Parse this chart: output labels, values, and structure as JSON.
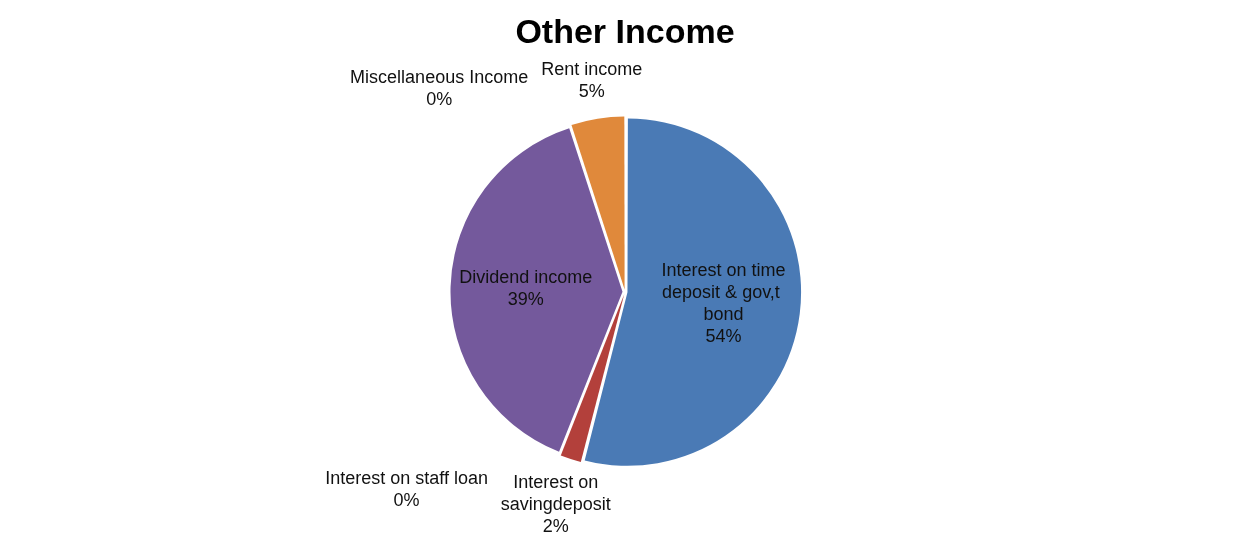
{
  "chart_data": {
    "type": "pie",
    "title": "Other Income",
    "categories": [
      "Interest on time deposit & gov,t  bond",
      "Interest on savingdeposit",
      "Interest on staff loan",
      "Dividend income",
      "Miscellaneous Income",
      "Rent income"
    ],
    "values": [
      54,
      2,
      0,
      39,
      0,
      5
    ],
    "colors": [
      "#4a7ab5",
      "#b3403b",
      "#8db34c",
      "#74599c",
      "#2b6b7c",
      "#e0893b"
    ],
    "value_labels": [
      "54%",
      "2%",
      "0%",
      "39%",
      "0%",
      "5%"
    ],
    "legend": false
  }
}
